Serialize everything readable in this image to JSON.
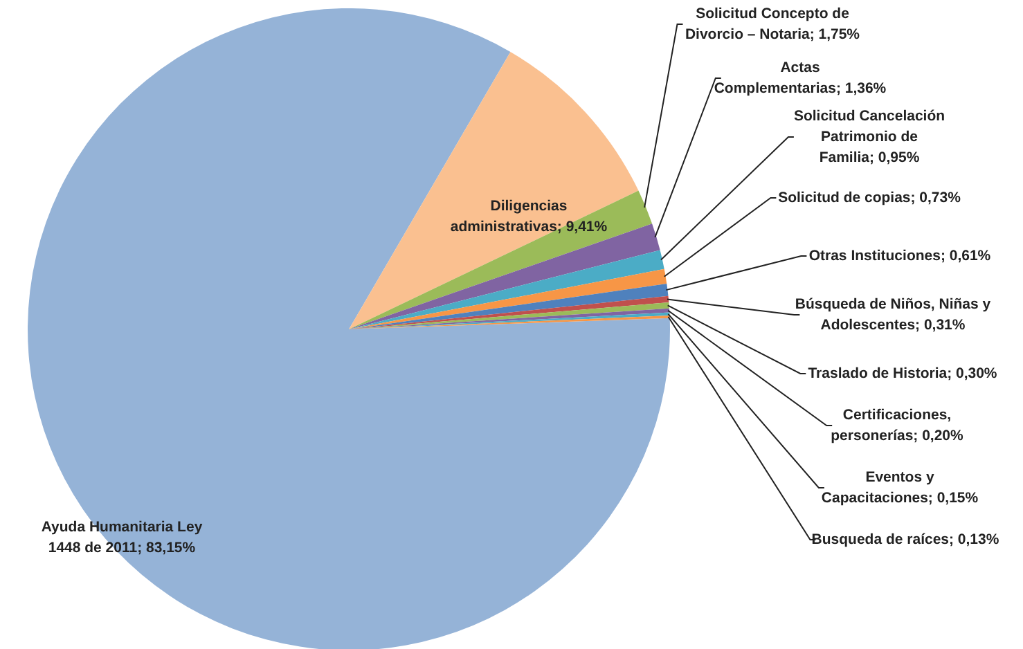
{
  "chart_data": {
    "type": "pie",
    "categories": [
      "Ayuda Humanitaria Ley 1448 de 2011",
      "Diligencias administrativas",
      "Solicitud Concepto de Divorcio – Notaria",
      "Actas Complementarias",
      "Solicitud Cancelación Patrimonio de Familia",
      "Solicitud de copias",
      "Otras Instituciones",
      "Búsqueda de Niños, Niñas y Adolescentes",
      "Traslado de Historia",
      "Certificaciones, personerías",
      "Eventos y Capacitaciones",
      "Busqueda de raíces"
    ],
    "values": [
      83.15,
      9.41,
      1.75,
      1.36,
      0.95,
      0.73,
      0.61,
      0.31,
      0.3,
      0.2,
      0.15,
      0.13
    ],
    "value_labels": [
      "83,15%",
      "9,41%",
      "1,75%",
      "1,36%",
      "0,95%",
      "0,73%",
      "0,61%",
      "0,31%",
      "0,30%",
      "0,20%",
      "0,15%",
      "0,13%"
    ],
    "colors": [
      "#95b3d7",
      "#fac090",
      "#9bbb59",
      "#8064a2",
      "#4bacc6",
      "#f79646",
      "#4f81bd",
      "#c0504d",
      "#9bbb59",
      "#8064a2",
      "#4bacc6",
      "#f79646"
    ],
    "legend": false
  }
}
